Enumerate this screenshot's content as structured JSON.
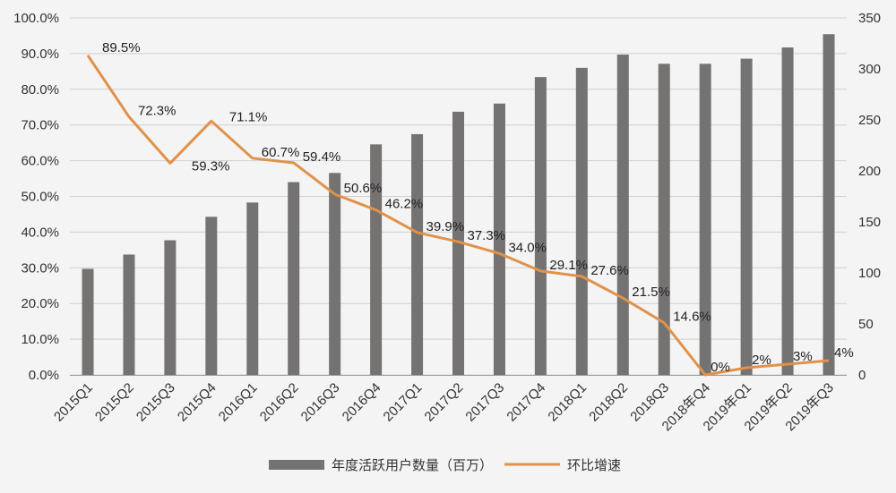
{
  "chart_data": {
    "type": "bar",
    "categories": [
      "2015Q1",
      "2015Q2",
      "2015Q3",
      "2015Q4",
      "2016Q1",
      "2016Q2",
      "2016Q3",
      "2016Q4",
      "2017Q1",
      "2017Q2",
      "2017Q3",
      "2017Q4",
      "2018Q1",
      "2018Q2",
      "2018Q3",
      "2018年Q4",
      "2019年Q1",
      "2019年Q2",
      "2019年Q3"
    ],
    "series": [
      {
        "name": "年度活跃用户数量（百万）",
        "type": "bar",
        "axis": "right",
        "color": "#757272",
        "values": [
          104,
          118,
          132,
          155,
          169,
          189,
          198,
          226,
          236,
          258,
          266,
          292,
          301,
          314,
          305,
          305,
          310,
          321,
          334
        ]
      },
      {
        "name": "环比增速",
        "type": "line",
        "axis": "left",
        "color": "#e0924a",
        "values": [
          89.5,
          72.3,
          59.3,
          71.1,
          60.7,
          59.4,
          50.6,
          46.2,
          39.9,
          37.3,
          34.0,
          29.1,
          27.6,
          21.5,
          14.6,
          0,
          2,
          3,
          4
        ],
        "labels": [
          "89.5%",
          "72.3%",
          "59.3%",
          "71.1%",
          "60.7%",
          "59.4%",
          "50.6%",
          "46.2%",
          "39.9%",
          "37.3%",
          "34.0%",
          "29.1%",
          "27.6%",
          "21.5%",
          "14.6%",
          "0%",
          "2%",
          "3%",
          "4%"
        ]
      }
    ],
    "y_left": {
      "ylim": [
        0,
        100
      ],
      "ticks": [
        "0.0%",
        "10.0%",
        "20.0%",
        "30.0%",
        "40.0%",
        "50.0%",
        "60.0%",
        "70.0%",
        "80.0%",
        "90.0%",
        "100.0%"
      ]
    },
    "y_right": {
      "ylim": [
        0,
        350
      ],
      "ticks": [
        "0",
        "50",
        "100",
        "150",
        "200",
        "250",
        "300",
        "350"
      ]
    },
    "grid": true,
    "legend": "bottom"
  }
}
